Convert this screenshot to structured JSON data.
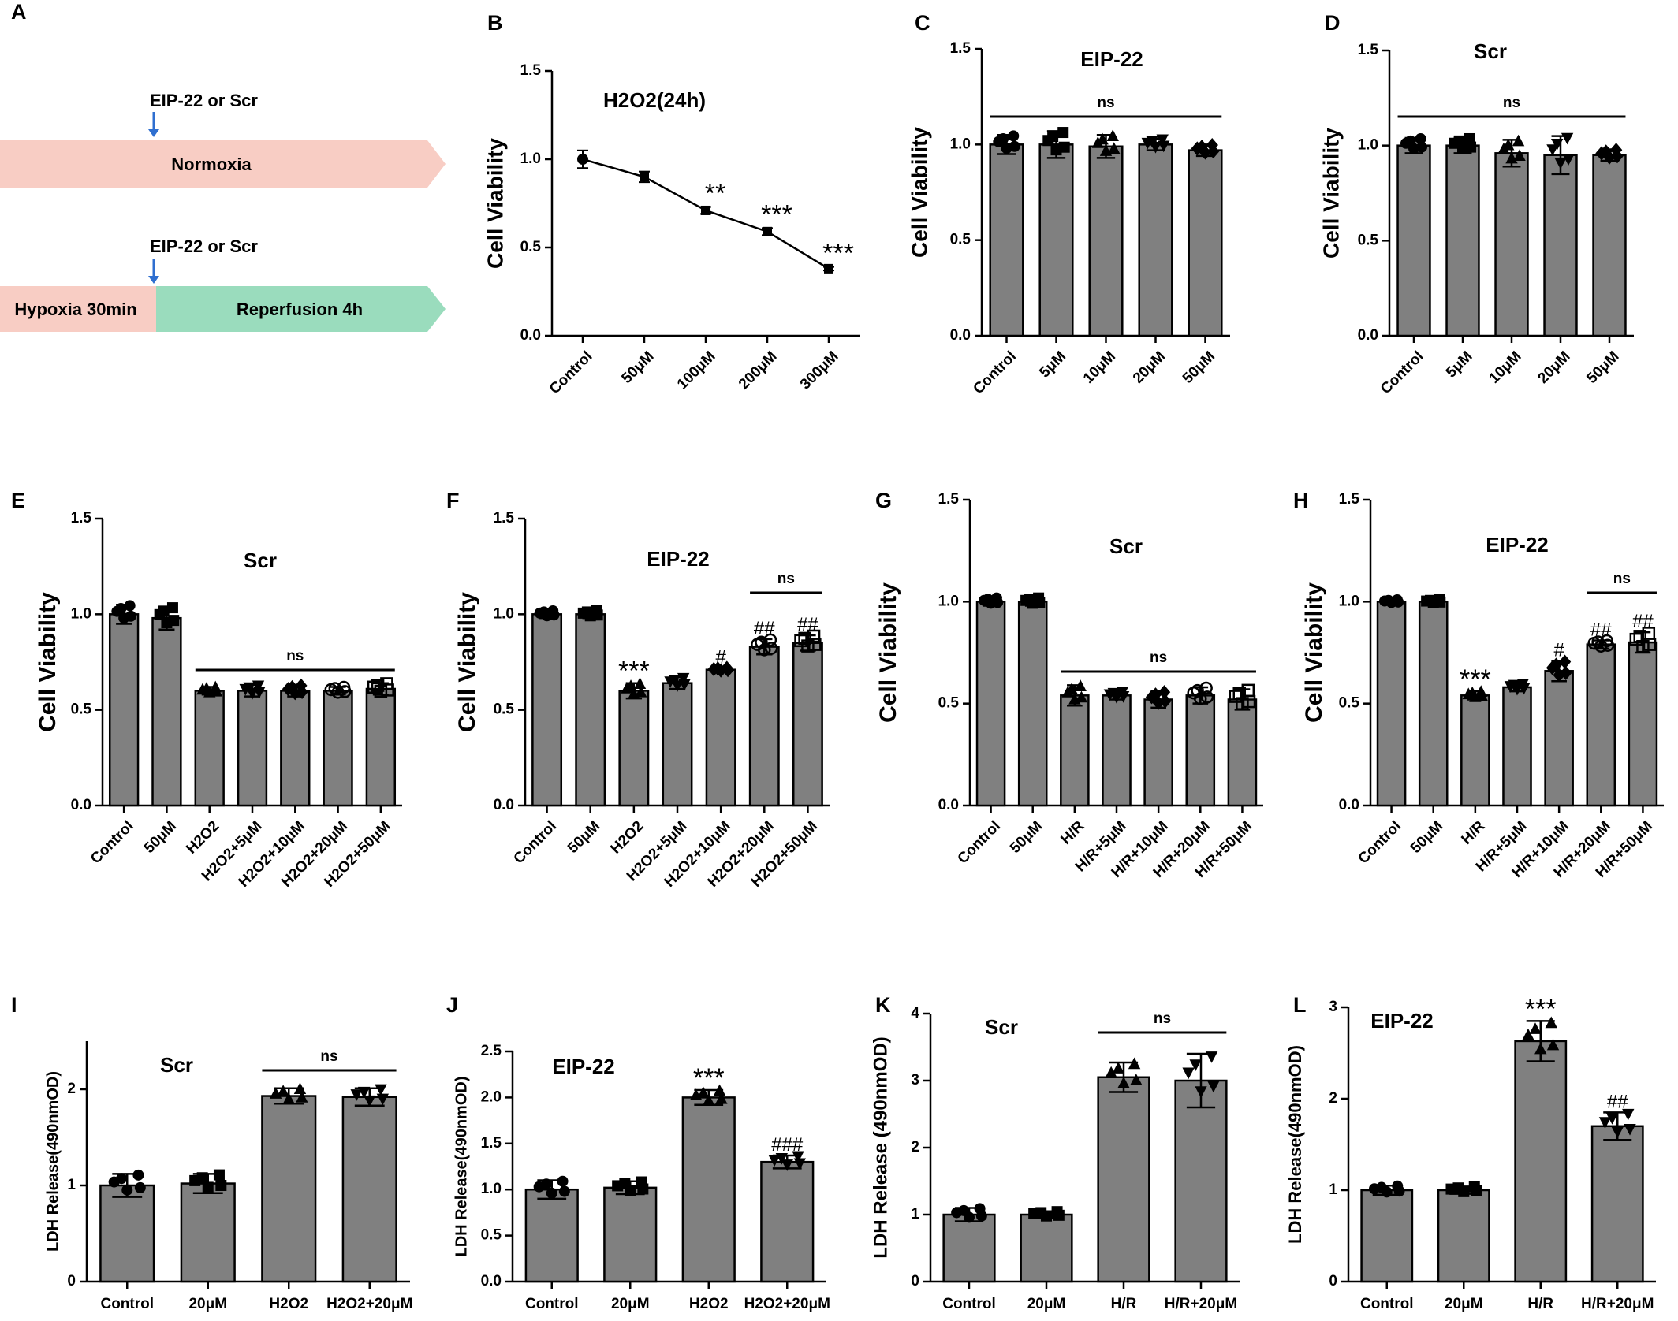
{
  "colors": {
    "bar": "#808080",
    "bar_edge": "#000000",
    "normoxia_band": "#f8cdc4",
    "hypoxia_band": "#f8cdc4",
    "reperfusion_band": "#9adcbd",
    "arrow": "#2f6fd0"
  },
  "panel_a": {
    "label": "A",
    "arrow_text_1": "EIP-22 or Scr",
    "band_1": "Normoxia",
    "arrow_text_2": "EIP-22 or Scr",
    "band_2a": "Hypoxia 30min",
    "band_2b": "Reperfusion 4h"
  },
  "chart_data": [
    {
      "id": "B",
      "type": "line",
      "title": "H2O2(24h)",
      "ylabel": "Cell Viability",
      "xlabel": "",
      "ylim": [
        0,
        1.5
      ],
      "yticks": [
        "0.0",
        "0.5",
        "1.0",
        "1.5"
      ],
      "categories": [
        "Control",
        "50μM",
        "100μM",
        "200μM",
        "300μM"
      ],
      "values": [
        1.0,
        0.9,
        0.71,
        0.59,
        0.38
      ],
      "errors": [
        0.05,
        0.03,
        0.02,
        0.02,
        0.01
      ],
      "marks": [
        "",
        "",
        "**",
        "***",
        "***"
      ]
    },
    {
      "id": "C",
      "type": "bar",
      "title": "EIP-22",
      "ylabel": "Cell Viability",
      "xlabel": "",
      "ylim": [
        0,
        1.5
      ],
      "yticks": [
        "0.0",
        "0.5",
        "1.0",
        "1.5"
      ],
      "categories": [
        "Control",
        "5μM",
        "10μM",
        "20μM",
        "50μM"
      ],
      "values": [
        1.0,
        1.0,
        0.99,
        1.0,
        0.97
      ],
      "errors": [
        0.05,
        0.07,
        0.06,
        0.03,
        0.03
      ],
      "marks": [
        "",
        "",
        "",
        "",
        ""
      ],
      "brackets": [
        {
          "from": 0,
          "to": 4,
          "label": "ns"
        }
      ]
    },
    {
      "id": "D",
      "type": "bar",
      "title": "Scr",
      "ylabel": "Cell Viability",
      "xlabel": "",
      "ylim": [
        0,
        1.5
      ],
      "yticks": [
        "0.0",
        "0.5",
        "1.0",
        "1.5"
      ],
      "categories": [
        "Control",
        "5μM",
        "10μM",
        "20μM",
        "50μM"
      ],
      "values": [
        1.0,
        1.0,
        0.96,
        0.95,
        0.95
      ],
      "errors": [
        0.04,
        0.04,
        0.07,
        0.1,
        0.03
      ],
      "marks": [
        "",
        "",
        "",
        "",
        ""
      ],
      "brackets": [
        {
          "from": 0,
          "to": 4,
          "label": "ns"
        }
      ]
    },
    {
      "id": "E",
      "type": "bar",
      "title": "Scr",
      "ylabel": "Cell Viability",
      "xlabel": "",
      "ylim": [
        0,
        1.5
      ],
      "yticks": [
        "0.0",
        "0.5",
        "1.0",
        "1.5"
      ],
      "categories": [
        "Control",
        "50μM",
        "H2O2",
        "H2O2+5μM",
        "H2O2+10μM",
        "H2O2+20μM",
        "H2O2+50μM"
      ],
      "values": [
        1.0,
        0.98,
        0.6,
        0.6,
        0.6,
        0.6,
        0.61
      ],
      "errors": [
        0.05,
        0.06,
        0.02,
        0.03,
        0.03,
        0.02,
        0.03
      ],
      "marks": [
        "",
        "",
        "",
        "",
        "",
        "",
        ""
      ],
      "brackets": [
        {
          "from": 2,
          "to": 6,
          "label": "ns"
        }
      ]
    },
    {
      "id": "F",
      "type": "bar",
      "title": "EIP-22",
      "ylabel": "Cell Viability",
      "xlabel": "",
      "ylim": [
        0,
        1.5
      ],
      "yticks": [
        "0.0",
        "0.5",
        "1.0",
        "1.5"
      ],
      "categories": [
        "Control",
        "50μM",
        "H2O2",
        "H2O2+5μM",
        "H2O2+10μM",
        "H2O2+20μM",
        "H2O2+50μM"
      ],
      "values": [
        1.0,
        1.0,
        0.6,
        0.64,
        0.71,
        0.83,
        0.85
      ],
      "errors": [
        0.02,
        0.02,
        0.04,
        0.03,
        0.01,
        0.04,
        0.04
      ],
      "marks": [
        "",
        "",
        "***",
        "",
        "#",
        "##",
        "##"
      ],
      "brackets": [
        {
          "from": 5,
          "to": 6,
          "label": "ns"
        }
      ]
    },
    {
      "id": "G",
      "type": "bar",
      "title": "Scr",
      "ylabel": "Cell Viability",
      "xlabel": "",
      "ylim": [
        0,
        1.5
      ],
      "yticks": [
        "0.0",
        "0.5",
        "1.0",
        "1.5"
      ],
      "categories": [
        "Control",
        "50μM",
        "H/R",
        "H/R+5μM",
        "H/R+10μM",
        "H/R+20μM",
        "H/R+50μM"
      ],
      "values": [
        1.0,
        1.0,
        0.54,
        0.54,
        0.52,
        0.54,
        0.52
      ],
      "errors": [
        0.02,
        0.02,
        0.05,
        0.02,
        0.04,
        0.04,
        0.05
      ],
      "marks": [
        "",
        "",
        "",
        "",
        "",
        "",
        ""
      ],
      "brackets": [
        {
          "from": 2,
          "to": 6,
          "label": "ns"
        }
      ]
    },
    {
      "id": "H",
      "type": "bar",
      "title": "EIP-22",
      "ylabel": "Cell Viability",
      "xlabel": "",
      "ylim": [
        0,
        1.5
      ],
      "yticks": [
        "0.0",
        "0.5",
        "1.0",
        "1.5"
      ],
      "categories": [
        "Control",
        "50μM",
        "H/R",
        "H/R+5μM",
        "H/R+10μM",
        "H/R+20μM",
        "H/R+50μM"
      ],
      "values": [
        1.0,
        1.0,
        0.54,
        0.58,
        0.66,
        0.79,
        0.8
      ],
      "errors": [
        0.01,
        0.01,
        0.02,
        0.02,
        0.05,
        0.02,
        0.05
      ],
      "marks": [
        "",
        "",
        "***",
        "",
        "#",
        "##",
        "##"
      ],
      "brackets": [
        {
          "from": 5,
          "to": 6,
          "label": "ns"
        }
      ]
    },
    {
      "id": "I",
      "type": "bar",
      "title": "Scr",
      "ylabel": "LDH Release(490nmOD)",
      "xlabel": "",
      "ylim": [
        0,
        2.5
      ],
      "yticks": [
        "0",
        "1",
        "2"
      ],
      "categories": [
        "Control",
        "20μM",
        "H2O2",
        "H2O2+20μM"
      ],
      "values": [
        1.0,
        1.02,
        1.93,
        1.92
      ],
      "errors": [
        0.12,
        0.1,
        0.08,
        0.09
      ],
      "marks": [
        "",
        "",
        "",
        ""
      ],
      "brackets": [
        {
          "from": 2,
          "to": 3,
          "label": "ns"
        }
      ]
    },
    {
      "id": "J",
      "type": "bar",
      "title": "EIP-22",
      "ylabel": "LDH Release(490nmOD)",
      "xlabel": "",
      "ylim": [
        0,
        2.5
      ],
      "yticks": [
        "0.0",
        "0.5",
        "1.0",
        "1.5",
        "2.0",
        "2.5"
      ],
      "categories": [
        "Control",
        "20μM",
        "H2O2",
        "H2O2+20μM"
      ],
      "values": [
        1.0,
        1.02,
        2.0,
        1.3
      ],
      "errors": [
        0.1,
        0.07,
        0.08,
        0.07
      ],
      "marks": [
        "",
        "",
        "***",
        "###"
      ],
      "brackets": []
    },
    {
      "id": "K",
      "type": "bar",
      "title": "Scr",
      "ylabel": "LDH Release (490nmOD)",
      "xlabel": "",
      "ylim": [
        0,
        4
      ],
      "yticks": [
        "0",
        "1",
        "2",
        "3",
        "4"
      ],
      "categories": [
        "Control",
        "20μM",
        "H/R",
        "H/R+20μM"
      ],
      "values": [
        1.0,
        1.0,
        3.05,
        3.0
      ],
      "errors": [
        0.1,
        0.05,
        0.22,
        0.4
      ],
      "marks": [
        "",
        "",
        "",
        ""
      ],
      "brackets": [
        {
          "from": 2,
          "to": 3,
          "label": "ns"
        }
      ]
    },
    {
      "id": "L",
      "type": "bar",
      "title": "EIP-22",
      "ylabel": "LDH Release(490nmOD)",
      "xlabel": "",
      "ylim": [
        0,
        3
      ],
      "yticks": [
        "0",
        "1",
        "2",
        "3"
      ],
      "categories": [
        "Control",
        "20μM",
        "H/R",
        "H/R+20μM"
      ],
      "values": [
        1.0,
        1.0,
        2.63,
        1.7
      ],
      "errors": [
        0.05,
        0.04,
        0.22,
        0.15
      ],
      "marks": [
        "",
        "",
        "***",
        "##"
      ],
      "brackets": []
    }
  ]
}
